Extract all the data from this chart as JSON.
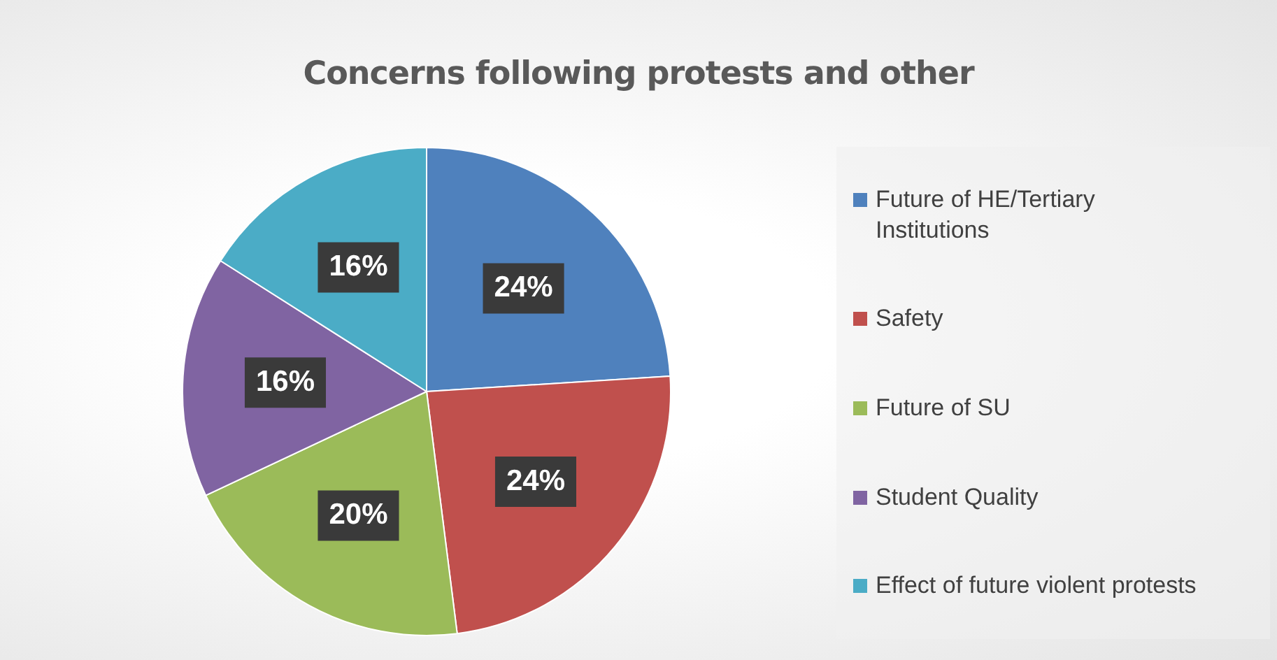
{
  "chart_data": {
    "type": "pie",
    "title": "Concerns following protests and other",
    "categories": [
      "Future of HE/Tertiary Institutions",
      "Safety",
      "Future of SU",
      "Student Quality",
      "Effect of future violent protests"
    ],
    "values": [
      24,
      24,
      20,
      16,
      16
    ],
    "colors": [
      "#4f81bd",
      "#c0504d",
      "#9bbb59",
      "#8064a2",
      "#4bacc6"
    ],
    "value_labels": [
      "24%",
      "24%",
      "20%",
      "16%",
      "16%"
    ],
    "legend": "right"
  }
}
